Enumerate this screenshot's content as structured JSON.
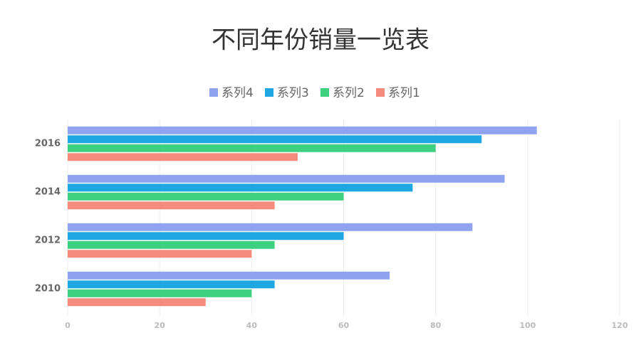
{
  "chart_data": {
    "type": "bar",
    "orientation": "horizontal",
    "title": "不同年份销量一览表",
    "categories": [
      "2010",
      "2012",
      "2014",
      "2016"
    ],
    "series": [
      {
        "name": "系列4",
        "color": "#8fa3f0",
        "values": [
          70,
          88,
          95,
          102
        ]
      },
      {
        "name": "系列3",
        "color": "#1ea7e1",
        "values": [
          45,
          60,
          75,
          90
        ]
      },
      {
        "name": "系列2",
        "color": "#3dd07f",
        "values": [
          40,
          45,
          60,
          80
        ]
      },
      {
        "name": "系列1",
        "color": "#f48b7c",
        "values": [
          30,
          40,
          45,
          50
        ]
      }
    ],
    "xlim": [
      0,
      120
    ],
    "xticks": [
      0,
      20,
      40,
      60,
      80,
      100,
      120
    ],
    "grid": true,
    "legend": "top"
  }
}
